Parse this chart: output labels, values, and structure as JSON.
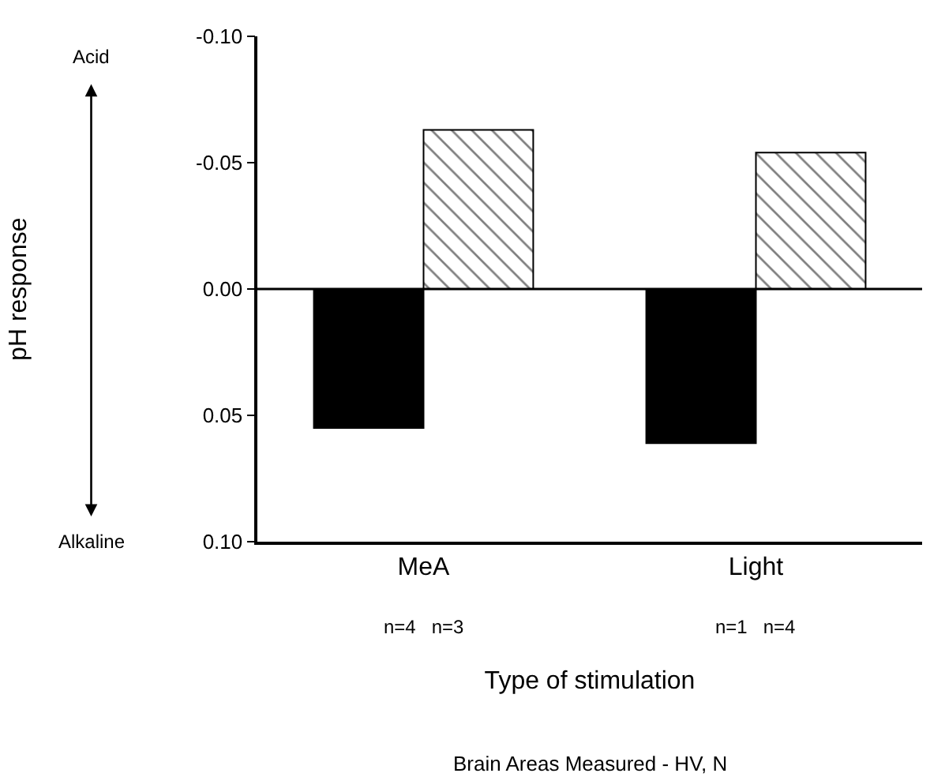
{
  "chart_data": {
    "type": "bar",
    "xlabel": "Type of stimulation",
    "categories": [
      "MeA",
      "Light"
    ],
    "series": [
      {
        "color": "#000000",
        "values": [
          0.055,
          0.061
        ]
      },
      {
        "color": "#000000",
        "values": [
          -0.063,
          -0.054
        ]
      }
    ],
    "ylim": [
      0.1,
      -0.1
    ],
    "yticks": [
      {
        "value": -0.1,
        "label": "-0.10"
      },
      {
        "value": -0.05,
        "label": "-0.05"
      },
      {
        "value": 0.0,
        "label": "0.00"
      },
      {
        "value": 0.05,
        "label": "0.05"
      },
      {
        "value": 0.1,
        "label": "0.10"
      }
    ],
    "annotations": [
      "Acid",
      "Alkaline",
      "n=4   n=3",
      "n=1   n=4",
      "Brain Areas Measured - HV, N",
      "pH response"
    ]
  }
}
